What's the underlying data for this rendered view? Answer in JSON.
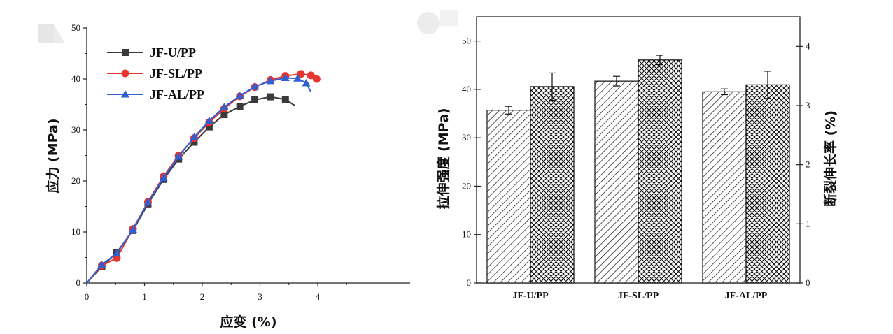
{
  "chart_data": [
    {
      "type": "line",
      "xlabel": "应变 (%)",
      "ylabel": "应力 (MPa)",
      "xlim": [
        0,
        5.6
      ],
      "ylim": [
        0,
        50
      ],
      "xticks": [
        0,
        1,
        2,
        3,
        4
      ],
      "yticks": [
        0,
        10,
        20,
        30,
        40,
        50
      ],
      "legend_position": "top-left",
      "series": [
        {
          "name": "JF-U/PP",
          "color": "#3a3a3a",
          "marker": "square",
          "x": [
            0,
            0.26,
            0.52,
            0.8,
            1.06,
            1.33,
            1.59,
            1.86,
            2.12,
            2.38,
            2.65,
            2.91,
            3.18,
            3.44,
            3.6
          ],
          "y": [
            0,
            3.2,
            6.0,
            10.3,
            15.5,
            20.3,
            24.3,
            27.6,
            30.6,
            33.0,
            34.6,
            35.9,
            36.5,
            36.0,
            34.8
          ]
        },
        {
          "name": "JF-SL/PP",
          "color": "#e8332e",
          "marker": "circle",
          "x": [
            0,
            0.26,
            0.52,
            0.8,
            1.06,
            1.33,
            1.59,
            1.86,
            2.12,
            2.38,
            2.65,
            2.91,
            3.18,
            3.44,
            3.71,
            3.88,
            3.98
          ],
          "y": [
            0,
            3.4,
            4.9,
            10.6,
            15.9,
            20.9,
            25.0,
            28.4,
            31.5,
            34.2,
            36.6,
            38.4,
            39.8,
            40.6,
            41.0,
            40.7,
            40.0
          ]
        },
        {
          "name": "JF-AL/PP",
          "color": "#2f5fd0",
          "marker": "triangle",
          "x": [
            0,
            0.26,
            0.52,
            0.8,
            1.06,
            1.33,
            1.59,
            1.86,
            2.12,
            2.38,
            2.65,
            2.91,
            3.18,
            3.44,
            3.65,
            3.8,
            3.88
          ],
          "y": [
            0,
            3.6,
            5.8,
            10.5,
            15.8,
            20.6,
            24.8,
            28.6,
            31.8,
            34.5,
            36.7,
            38.5,
            39.6,
            40.2,
            40.1,
            39.2,
            37.5
          ]
        }
      ]
    },
    {
      "type": "bar",
      "ylabel": "拉伸强度 (MPa)",
      "y2label": "断裂伸长率 (%)",
      "categories": [
        "JF-U/PP",
        "JF-SL/PP",
        "JF-AL/PP"
      ],
      "ylim": [
        0,
        55
      ],
      "yticks": [
        0,
        10,
        20,
        30,
        40,
        50
      ],
      "y2lim": [
        0,
        4.5
      ],
      "y2ticks": [
        0,
        1,
        2,
        3,
        4
      ],
      "series": [
        {
          "pattern": "diagonal-hatch",
          "axis": "left",
          "values": [
            35.7,
            41.7,
            39.5
          ],
          "errors": [
            0.8,
            1.0,
            0.6
          ]
        },
        {
          "pattern": "cross-hatch",
          "axis": "right",
          "values": [
            3.32,
            3.77,
            3.35
          ],
          "errors": [
            0.23,
            0.08,
            0.23
          ]
        }
      ]
    }
  ]
}
